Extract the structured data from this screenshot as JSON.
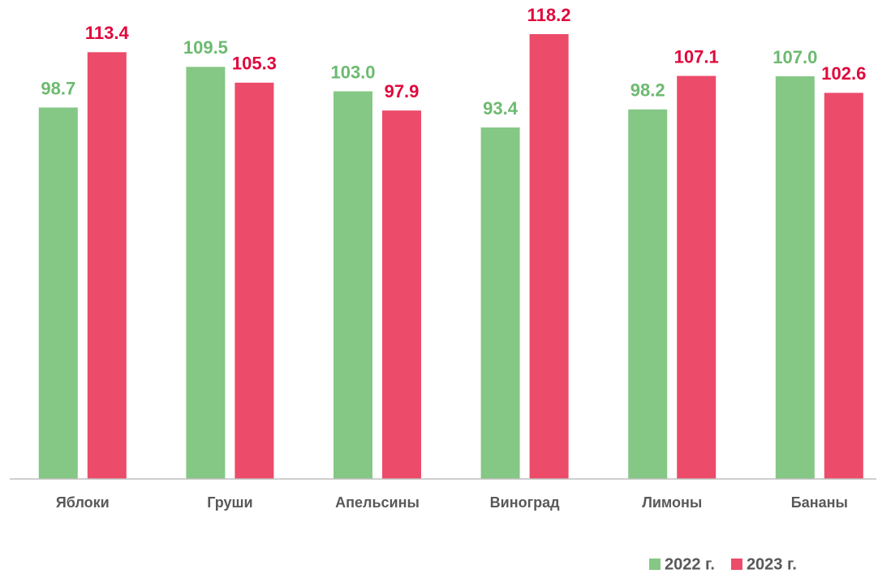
{
  "chart_data": {
    "type": "bar",
    "categories": [
      "Яблоки",
      "Груши",
      "Апельсины",
      "Виноград",
      "Лимоны",
      "Бананы"
    ],
    "series": [
      {
        "name": "2022 г.",
        "color": "#85c785",
        "label_color": "#6dba70",
        "values": [
          98.7,
          109.5,
          103.0,
          93.4,
          98.2,
          107.0
        ],
        "value_labels": [
          "98.7",
          "109.5",
          "103.0",
          "93.4",
          "98.2",
          "107.0"
        ]
      },
      {
        "name": "2023 г.",
        "color": "#ec4b6a",
        "label_color": "#e0083c",
        "values": [
          113.4,
          105.3,
          97.9,
          118.2,
          107.1,
          102.6
        ],
        "value_labels": [
          "113.4",
          "105.3",
          "97.9",
          "118.2",
          "107.1",
          "102.6"
        ]
      }
    ],
    "ylim": [
      0,
      120
    ],
    "grid": false,
    "legend": "bottom-right"
  }
}
